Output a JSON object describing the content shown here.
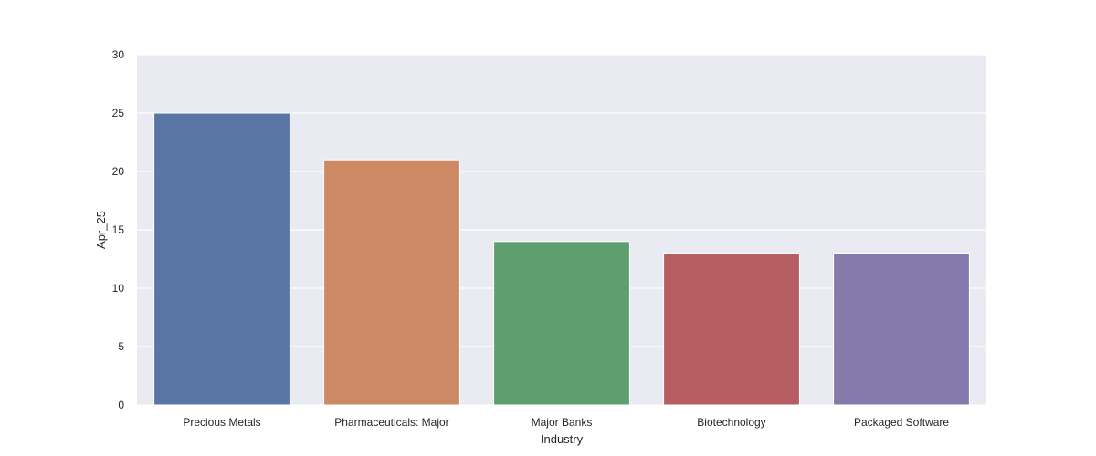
{
  "chart_data": {
    "type": "bar",
    "categories": [
      "Precious Metals",
      "Pharmaceuticals: Major",
      "Major Banks",
      "Biotechnology",
      "Packaged Software"
    ],
    "values": [
      25,
      21,
      14,
      13,
      13
    ],
    "colors": [
      "#5975a4",
      "#cc8963",
      "#5f9e6e",
      "#b55d60",
      "#857aab"
    ],
    "xlabel": "Industry",
    "ylabel": "Apr_25",
    "ylim": [
      0,
      30
    ],
    "yticks": [
      0,
      5,
      10,
      15,
      20,
      25,
      30
    ],
    "grid": true,
    "background_color": "#eaeaf2",
    "grid_color": "#ffffff"
  }
}
